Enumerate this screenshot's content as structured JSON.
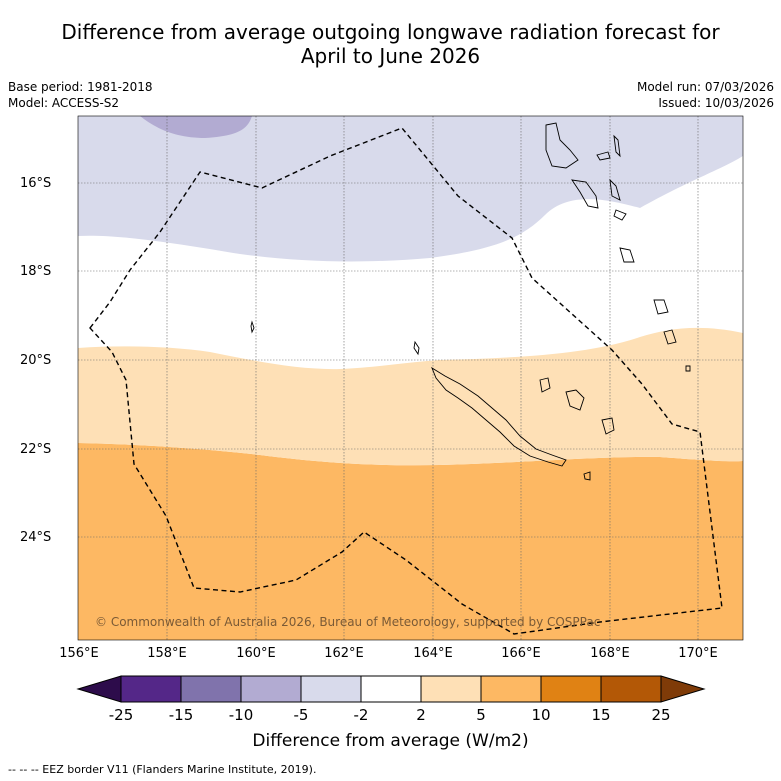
{
  "title_line1": "Difference from average outgoing longwave radiation forecast for",
  "title_line2": "April to June 2026",
  "base_period": "Base period: 1981-2018",
  "model": "Model: ACCESS-S2",
  "model_run": "Model run: 07/03/2026",
  "issued": "Issued: 10/03/2026",
  "copyright": "© Commonwealth of Australia 2026, Bureau of Meteorology, supported by COSPPac",
  "y_axis_labels": [
    "16°S",
    "18°S",
    "20°S",
    "22°S",
    "24°S"
  ],
  "x_axis_labels": [
    "156°E",
    "158°E",
    "160°E",
    "162°E",
    "164°E",
    "166°E",
    "168°E",
    "170°E"
  ],
  "colorbar": {
    "title": "Difference from average (W/m2)",
    "tick_labels": [
      "-25",
      "-15",
      "-10",
      "-5",
      "-2",
      "2",
      "5",
      "10",
      "15",
      "25"
    ],
    "colors": {
      "below_min": "#2d0c4b",
      "n25_n15": "#542788",
      "n15_n10": "#8073ac",
      "n10_n5": "#b2abd2",
      "n5_n2": "#d8daeb",
      "n2_2": "#ffffff",
      "p2_p5": "#fee0b6",
      "p5_p10": "#fdb863",
      "p10_p15": "#e08214",
      "p15_p25": "#b35806",
      "above_max": "#7f3b08"
    }
  },
  "legend_text": "--  --  -- EEZ border V11 (Flanders Marine Institute, 2019)."
}
